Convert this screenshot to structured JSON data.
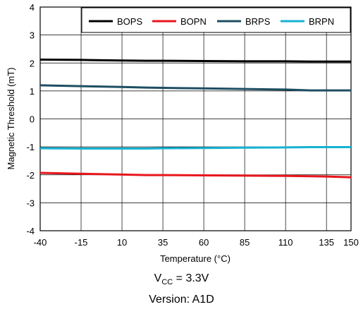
{
  "chart_data": {
    "type": "line",
    "xlabel": "Temperature (°C)",
    "ylabel": "Magnetic Threshold (mT)",
    "xlim": [
      -40,
      150
    ],
    "ylim": [
      -4,
      4
    ],
    "x_ticks": [
      -40,
      -15,
      10,
      35,
      60,
      85,
      110,
      135,
      150
    ],
    "y_ticks": [
      4,
      3,
      2,
      1,
      0,
      -1,
      -2,
      -3,
      -4
    ],
    "y_tick_labels": [
      "4",
      "3",
      "2",
      "1",
      "0",
      "-1",
      "-2",
      "-3",
      "-4"
    ],
    "grid": true,
    "legend_position": "top-right",
    "series": [
      {
        "name": "BOPS",
        "color": "#000000",
        "x": [
          -40,
          -15,
          10,
          25,
          35,
          60,
          85,
          110,
          125,
          135,
          150
        ],
        "y": [
          2.12,
          2.11,
          2.09,
          2.08,
          2.08,
          2.07,
          2.06,
          2.06,
          2.05,
          2.05,
          2.05
        ]
      },
      {
        "name": "BOPN",
        "color": "#e8161d",
        "x": [
          -40,
          -15,
          10,
          25,
          35,
          60,
          85,
          110,
          125,
          135,
          150
        ],
        "y": [
          -1.93,
          -1.96,
          -1.99,
          -2.01,
          -2.01,
          -2.02,
          -2.03,
          -2.04,
          -2.05,
          -2.06,
          -2.09
        ]
      },
      {
        "name": "BRPS",
        "color": "#1d4e61",
        "x": [
          -40,
          -15,
          10,
          25,
          35,
          60,
          85,
          110,
          125,
          135,
          150
        ],
        "y": [
          1.2,
          1.17,
          1.14,
          1.12,
          1.11,
          1.09,
          1.07,
          1.05,
          1.02,
          1.02,
          1.02
        ]
      },
      {
        "name": "BRPN",
        "color": "#15b3d3",
        "x": [
          -40,
          -15,
          10,
          25,
          35,
          60,
          85,
          110,
          125,
          135,
          150
        ],
        "y": [
          -1.05,
          -1.06,
          -1.06,
          -1.06,
          -1.05,
          -1.04,
          -1.03,
          -1.02,
          -1.01,
          -1.01,
          -1.01
        ]
      }
    ]
  },
  "conditions": {
    "vcc_symbol": "V",
    "vcc_subscript": "CC",
    "vcc_value": " = 3.3V",
    "version": "Version: A1D"
  }
}
